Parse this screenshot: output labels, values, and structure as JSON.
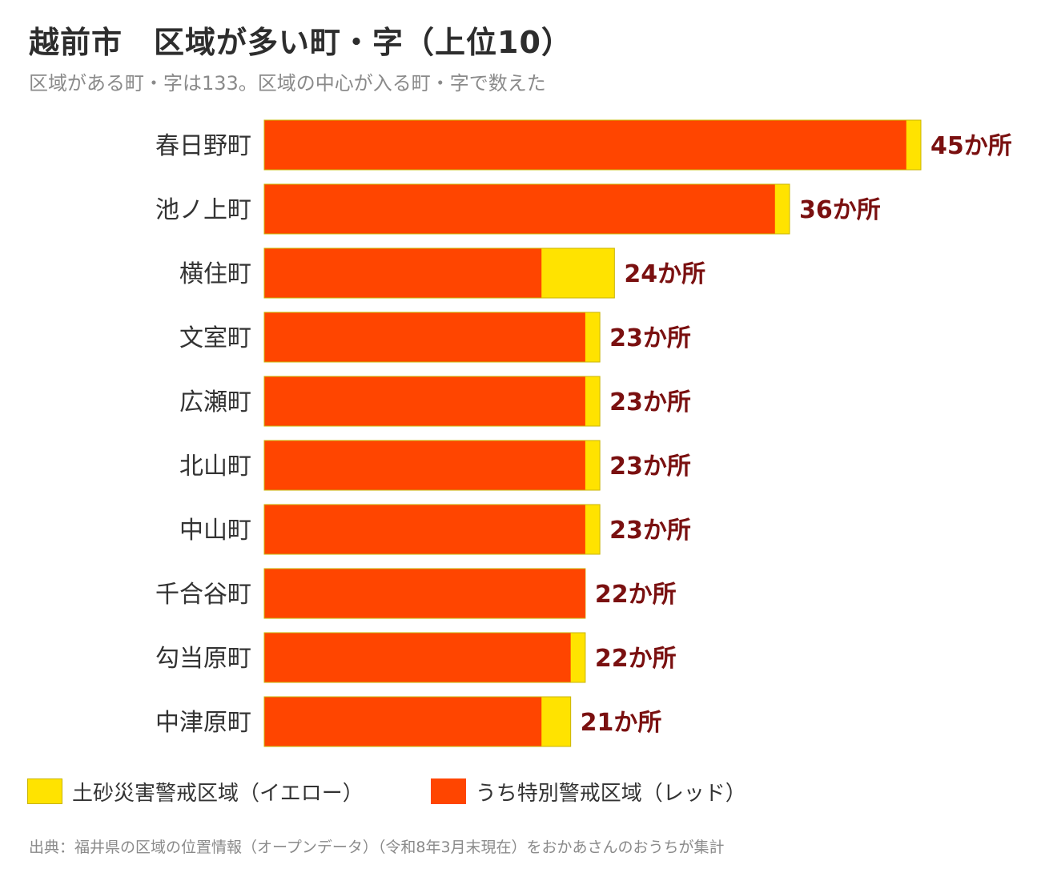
{
  "title": "越前市　区域が多い町・字（上位10）",
  "subtitle": "区域がある町・字は133。区域の中心が入る町・字で数えた",
  "legend": {
    "yellow_label": "土砂災害警戒区域（イエロー）",
    "red_label": "うち特別警戒区域（レッド）"
  },
  "source": "出典：福井県の区域の位置情報（オープンデータ）（令和8年3月末現在）をおかあさんのおうちが集計",
  "colors": {
    "yellow": "#ffe300",
    "red": "#ff4500",
    "yellow_border": "#c9b400",
    "value_label": "#7a1010",
    "category_label": "#333333"
  },
  "chart_data": {
    "type": "bar",
    "orientation": "horizontal",
    "stacking": "overlay",
    "categories": [
      "春日野町",
      "池ノ上町",
      "横住町",
      "文室町",
      "広瀬町",
      "北山町",
      "中山町",
      "千合谷町",
      "勾当原町",
      "中津原町"
    ],
    "series": [
      {
        "name": "土砂災害警戒区域（イエロー）",
        "values": [
          45,
          36,
          24,
          23,
          23,
          23,
          23,
          22,
          22,
          21
        ]
      },
      {
        "name": "うち特別警戒区域（レッド）",
        "values": [
          44,
          35,
          19,
          22,
          22,
          22,
          22,
          22,
          21,
          19
        ]
      }
    ],
    "value_labels": [
      "45か所",
      "36か所",
      "24か所",
      "23か所",
      "23か所",
      "23か所",
      "23か所",
      "22か所",
      "22か所",
      "21か所"
    ],
    "xlim": [
      0,
      45
    ],
    "grid": false,
    "legend_position": "bottom-left"
  }
}
